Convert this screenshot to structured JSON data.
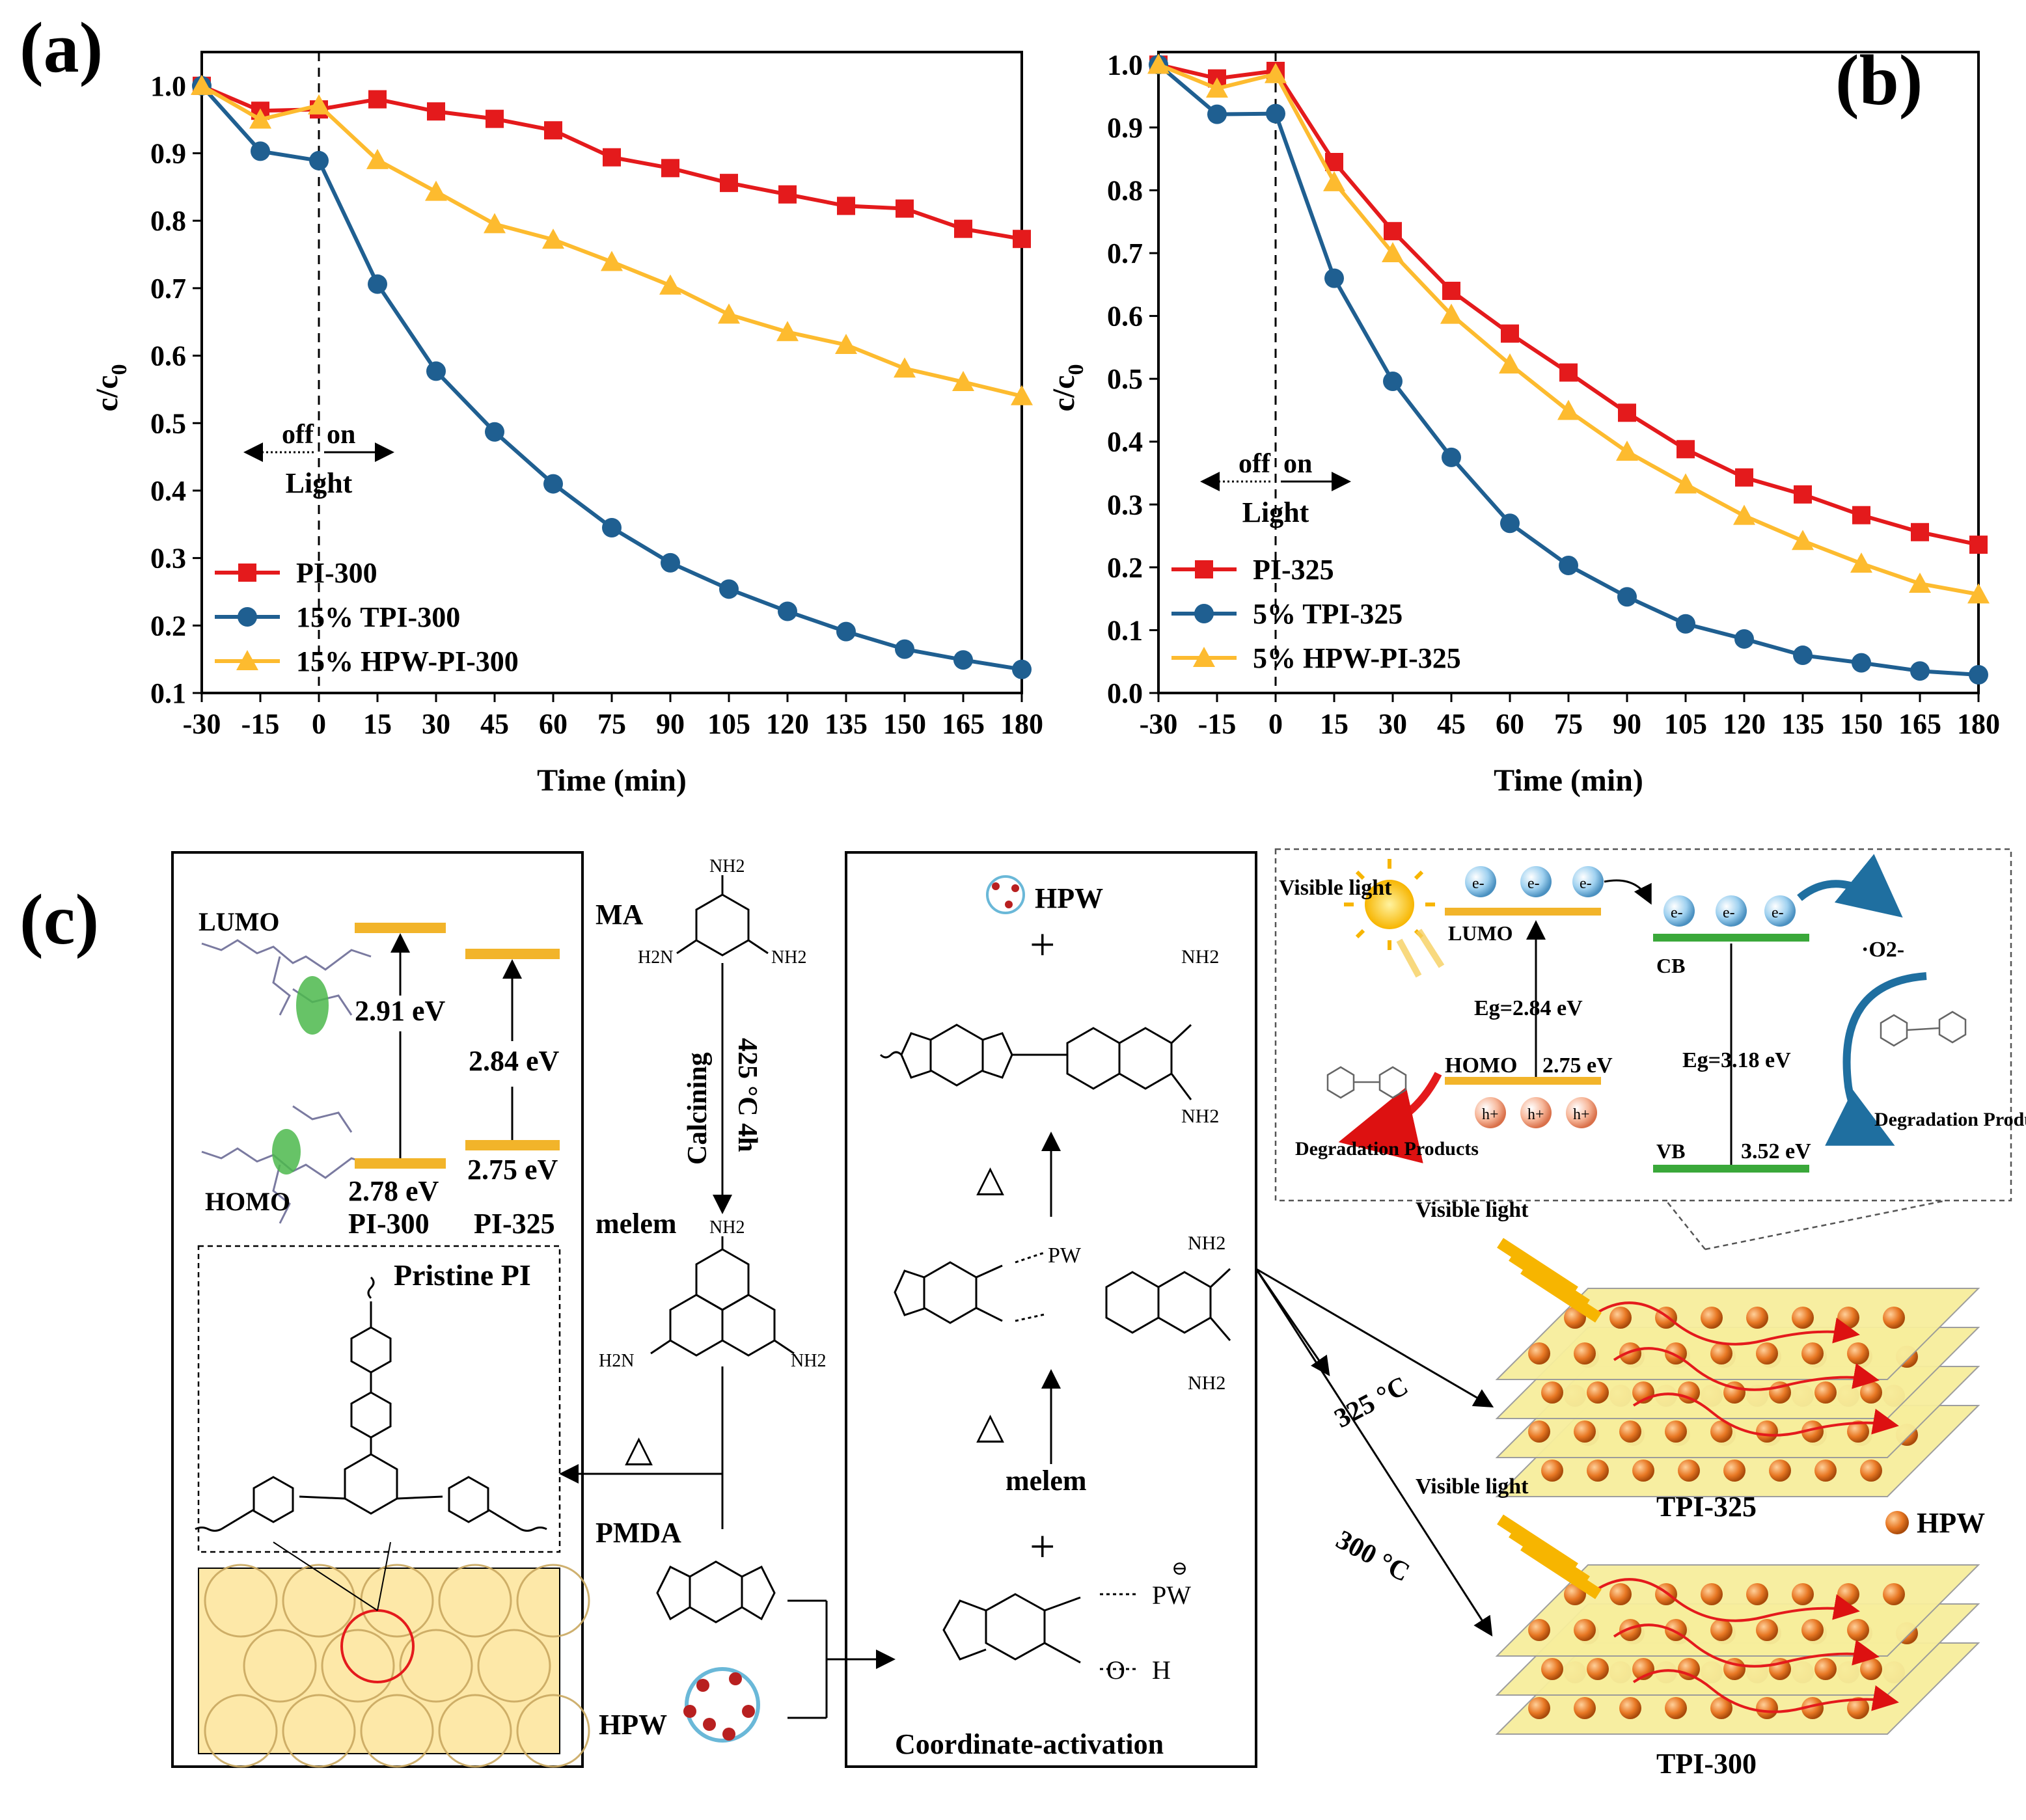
{
  "panels": {
    "a": "(a)",
    "b": "(b)",
    "c": "(c)"
  },
  "chart_data": [
    {
      "type": "line",
      "panel": "(a)",
      "title": "",
      "xlabel": "Time (min)",
      "ylabel": "c/c0",
      "ylabel_main": "c/c",
      "ylabel_sub": "0",
      "x": [
        -30,
        -15,
        0,
        15,
        30,
        45,
        60,
        75,
        90,
        105,
        120,
        135,
        150,
        165,
        180
      ],
      "xticks": [
        "-30",
        "-15",
        "0",
        "15",
        "30",
        "45",
        "60",
        "75",
        "90",
        "105",
        "120",
        "135",
        "150",
        "165",
        "180"
      ],
      "ylim": [
        0.1,
        1.05
      ],
      "yticks": [
        "0.1",
        "0.2",
        "0.3",
        "0.4",
        "0.5",
        "0.6",
        "0.7",
        "0.8",
        "0.9",
        "1.0"
      ],
      "annotations": {
        "off": "off",
        "on": "on",
        "light": "Light"
      },
      "legend_position": "bottom-left",
      "series": [
        {
          "name": "PI-300",
          "color": "#e41a1c",
          "marker": "square",
          "values": [
            1.0,
            0.963,
            0.965,
            0.98,
            0.962,
            0.951,
            0.934,
            0.894,
            0.878,
            0.856,
            0.839,
            0.822,
            0.818,
            0.788,
            0.773
          ]
        },
        {
          "name": "15% TPI-300",
          "color": "#1f5f91",
          "marker": "circle",
          "values": [
            1.0,
            0.903,
            0.889,
            0.706,
            0.577,
            0.487,
            0.41,
            0.345,
            0.293,
            0.254,
            0.221,
            0.191,
            0.165,
            0.149,
            0.135
          ]
        },
        {
          "name": "15% HPW-PI-300",
          "color": "#fdbb2f",
          "marker": "triangle",
          "values": [
            1.0,
            0.95,
            0.971,
            0.89,
            0.843,
            0.795,
            0.772,
            0.739,
            0.704,
            0.661,
            0.635,
            0.616,
            0.581,
            0.561,
            0.54
          ]
        }
      ]
    },
    {
      "type": "line",
      "panel": "(b)",
      "title": "",
      "xlabel": "Time (min)",
      "ylabel": "c/c0",
      "ylabel_main": "c/c",
      "ylabel_sub": "0",
      "x": [
        -30,
        -15,
        0,
        15,
        30,
        45,
        60,
        75,
        90,
        105,
        120,
        135,
        150,
        165,
        180
      ],
      "xticks": [
        "-30",
        "-15",
        "0",
        "15",
        "30",
        "45",
        "60",
        "75",
        "90",
        "105",
        "120",
        "135",
        "150",
        "165",
        "180"
      ],
      "ylim": [
        0.0,
        1.02
      ],
      "yticks": [
        "0.0",
        "0.1",
        "0.2",
        "0.3",
        "0.4",
        "0.5",
        "0.6",
        "0.7",
        "0.8",
        "0.9",
        "1.0"
      ],
      "annotations": {
        "off": "off",
        "on": "on",
        "light": "Light"
      },
      "legend_position": "bottom-left",
      "series": [
        {
          "name": "PI-325",
          "color": "#e41a1c",
          "marker": "square",
          "values": [
            1.0,
            0.978,
            0.99,
            0.845,
            0.735,
            0.64,
            0.572,
            0.51,
            0.446,
            0.388,
            0.343,
            0.316,
            0.283,
            0.256,
            0.236
          ]
        },
        {
          "name": "5% TPI-325",
          "color": "#1f5f91",
          "marker": "circle",
          "values": [
            1.0,
            0.921,
            0.922,
            0.66,
            0.496,
            0.375,
            0.27,
            0.203,
            0.153,
            0.11,
            0.086,
            0.06,
            0.048,
            0.035,
            0.029
          ]
        },
        {
          "name": "5% HPW-PI-325",
          "color": "#fdbb2f",
          "marker": "triangle",
          "values": [
            1.0,
            0.962,
            0.985,
            0.813,
            0.7,
            0.602,
            0.523,
            0.449,
            0.384,
            0.332,
            0.282,
            0.242,
            0.206,
            0.174,
            0.157
          ]
        }
      ]
    }
  ],
  "scheme": {
    "energy_levels": {
      "lumo": "LUMO",
      "homo": "HOMO",
      "gap_300": "2.91 eV",
      "gap_325": "2.84 eV",
      "homo_300": "2.78 eV",
      "homo_325": "2.75 eV",
      "name_300": "PI-300",
      "name_325": "PI-325"
    },
    "pristine": {
      "title": "Pristine PI"
    },
    "synthesis": {
      "ma": "MA",
      "calcining": "Calcining",
      "temp": "425 °C 4h",
      "melem": "melem",
      "pmda": "PMDA",
      "hpw": "HPW",
      "delta": "△",
      "nh2": "NH2",
      "h2n": "H2N"
    },
    "activation": {
      "hpw": "HPW",
      "plus": "+",
      "melem": "melem",
      "pw_label": "PW",
      "pw_minus": "⊖",
      "o_label": "O",
      "h_label": "H",
      "caption": "Coordinate-activation",
      "delta": "△"
    },
    "mechanism": {
      "visible_light": "Visible light",
      "lumo": "LUMO",
      "homo": "HOMO",
      "cb": "CB",
      "vb": "VB",
      "eg_left": "Eg=2.84 eV",
      "homo_val": "2.75 eV",
      "eg_right": "Eg=3.18 eV",
      "vb_val": "3.52 eV",
      "o2": "O2",
      "superoxide": "·O2-",
      "electron": "e-",
      "hole": "h+",
      "degradation": "Degradation Products"
    },
    "layers": {
      "visible_light": "Visible light",
      "temp_325": "325 °C",
      "temp_300": "300 °C",
      "tpi_325": "TPI-325",
      "tpi_300": "TPI-300",
      "hpw_legend": "HPW"
    }
  },
  "colors": {
    "red": "#e41a1c",
    "blue": "#1f5f91",
    "yellow": "#fdbb2f",
    "level_orange": "#f2b42a",
    "green": "#3aa83a",
    "sheet": "#f7ee9c",
    "sphere": "#e87824",
    "panel_bg": "#fde8a8"
  }
}
